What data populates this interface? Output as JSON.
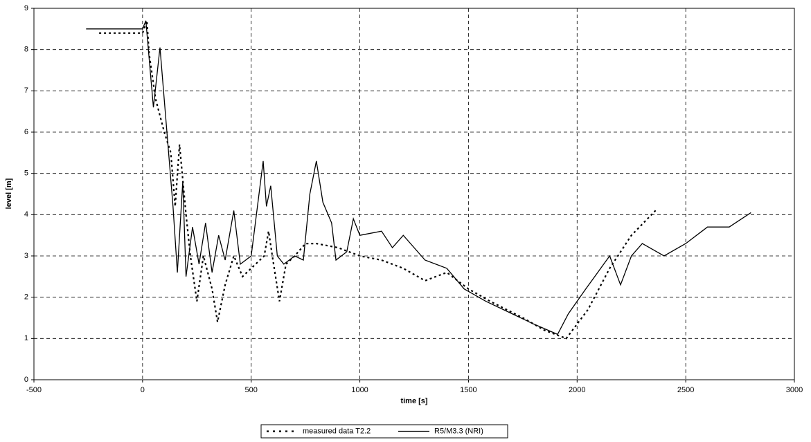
{
  "chart_data": {
    "type": "line",
    "x_label": "time [s]",
    "y_label": "level [m]",
    "xlim": [
      -500,
      3000
    ],
    "xticks": [
      -500,
      0,
      500,
      1000,
      1500,
      2000,
      2500,
      3000
    ],
    "ylim": [
      0,
      9
    ],
    "yticks": [
      0,
      1,
      2,
      3,
      4,
      5,
      6,
      7,
      8,
      9
    ],
    "grid": true,
    "legend": "bottom",
    "series": [
      {
        "name": "measured data T2.2",
        "color": "#000000",
        "dash": true,
        "x": [
          -200,
          0,
          20,
          30,
          60,
          100,
          130,
          150,
          170,
          200,
          220,
          250,
          280,
          320,
          345,
          380,
          420,
          460,
          520,
          560,
          580,
          600,
          630,
          660,
          700,
          750,
          800,
          900,
          1000,
          1100,
          1200,
          1300,
          1400,
          1500,
          1600,
          1750,
          1850,
          1950,
          2050,
          2150,
          2250,
          2370
        ],
        "values": [
          8.4,
          8.4,
          8.7,
          7.9,
          6.8,
          6.0,
          5.5,
          4.2,
          5.7,
          4.0,
          3.0,
          1.9,
          3.0,
          2.2,
          1.4,
          2.3,
          3.0,
          2.5,
          2.8,
          3.0,
          3.6,
          2.9,
          1.9,
          2.8,
          3.0,
          3.3,
          3.3,
          3.2,
          3.0,
          2.9,
          2.7,
          2.4,
          2.6,
          2.2,
          1.9,
          1.5,
          1.2,
          1.0,
          1.7,
          2.7,
          3.5,
          4.15
        ]
      },
      {
        "name": "R5/M3.3 (NRI)",
        "color": "#000000",
        "dash": false,
        "x": [
          -260,
          0,
          15,
          50,
          80,
          140,
          160,
          185,
          200,
          230,
          260,
          290,
          320,
          350,
          380,
          420,
          450,
          500,
          555,
          570,
          590,
          620,
          650,
          700,
          740,
          770,
          800,
          830,
          870,
          890,
          940,
          970,
          1000,
          1100,
          1150,
          1200,
          1300,
          1400,
          1480,
          1580,
          1700,
          1800,
          1910,
          1960,
          2040,
          2150,
          2200,
          2250,
          2300,
          2400,
          2500,
          2600,
          2700,
          2800
        ],
        "values": [
          8.5,
          8.5,
          8.7,
          6.6,
          8.05,
          4.2,
          2.6,
          4.8,
          2.5,
          3.7,
          2.8,
          3.8,
          2.6,
          3.5,
          2.9,
          4.1,
          2.8,
          3.0,
          5.3,
          4.2,
          4.7,
          3.0,
          2.8,
          3.0,
          2.9,
          4.5,
          5.3,
          4.3,
          3.8,
          2.9,
          3.1,
          3.9,
          3.5,
          3.6,
          3.2,
          3.5,
          2.9,
          2.7,
          2.2,
          1.9,
          1.6,
          1.35,
          1.1,
          1.6,
          2.2,
          3.0,
          2.3,
          3.0,
          3.3,
          3.0,
          3.3,
          3.7,
          3.7,
          4.05
        ]
      }
    ]
  }
}
